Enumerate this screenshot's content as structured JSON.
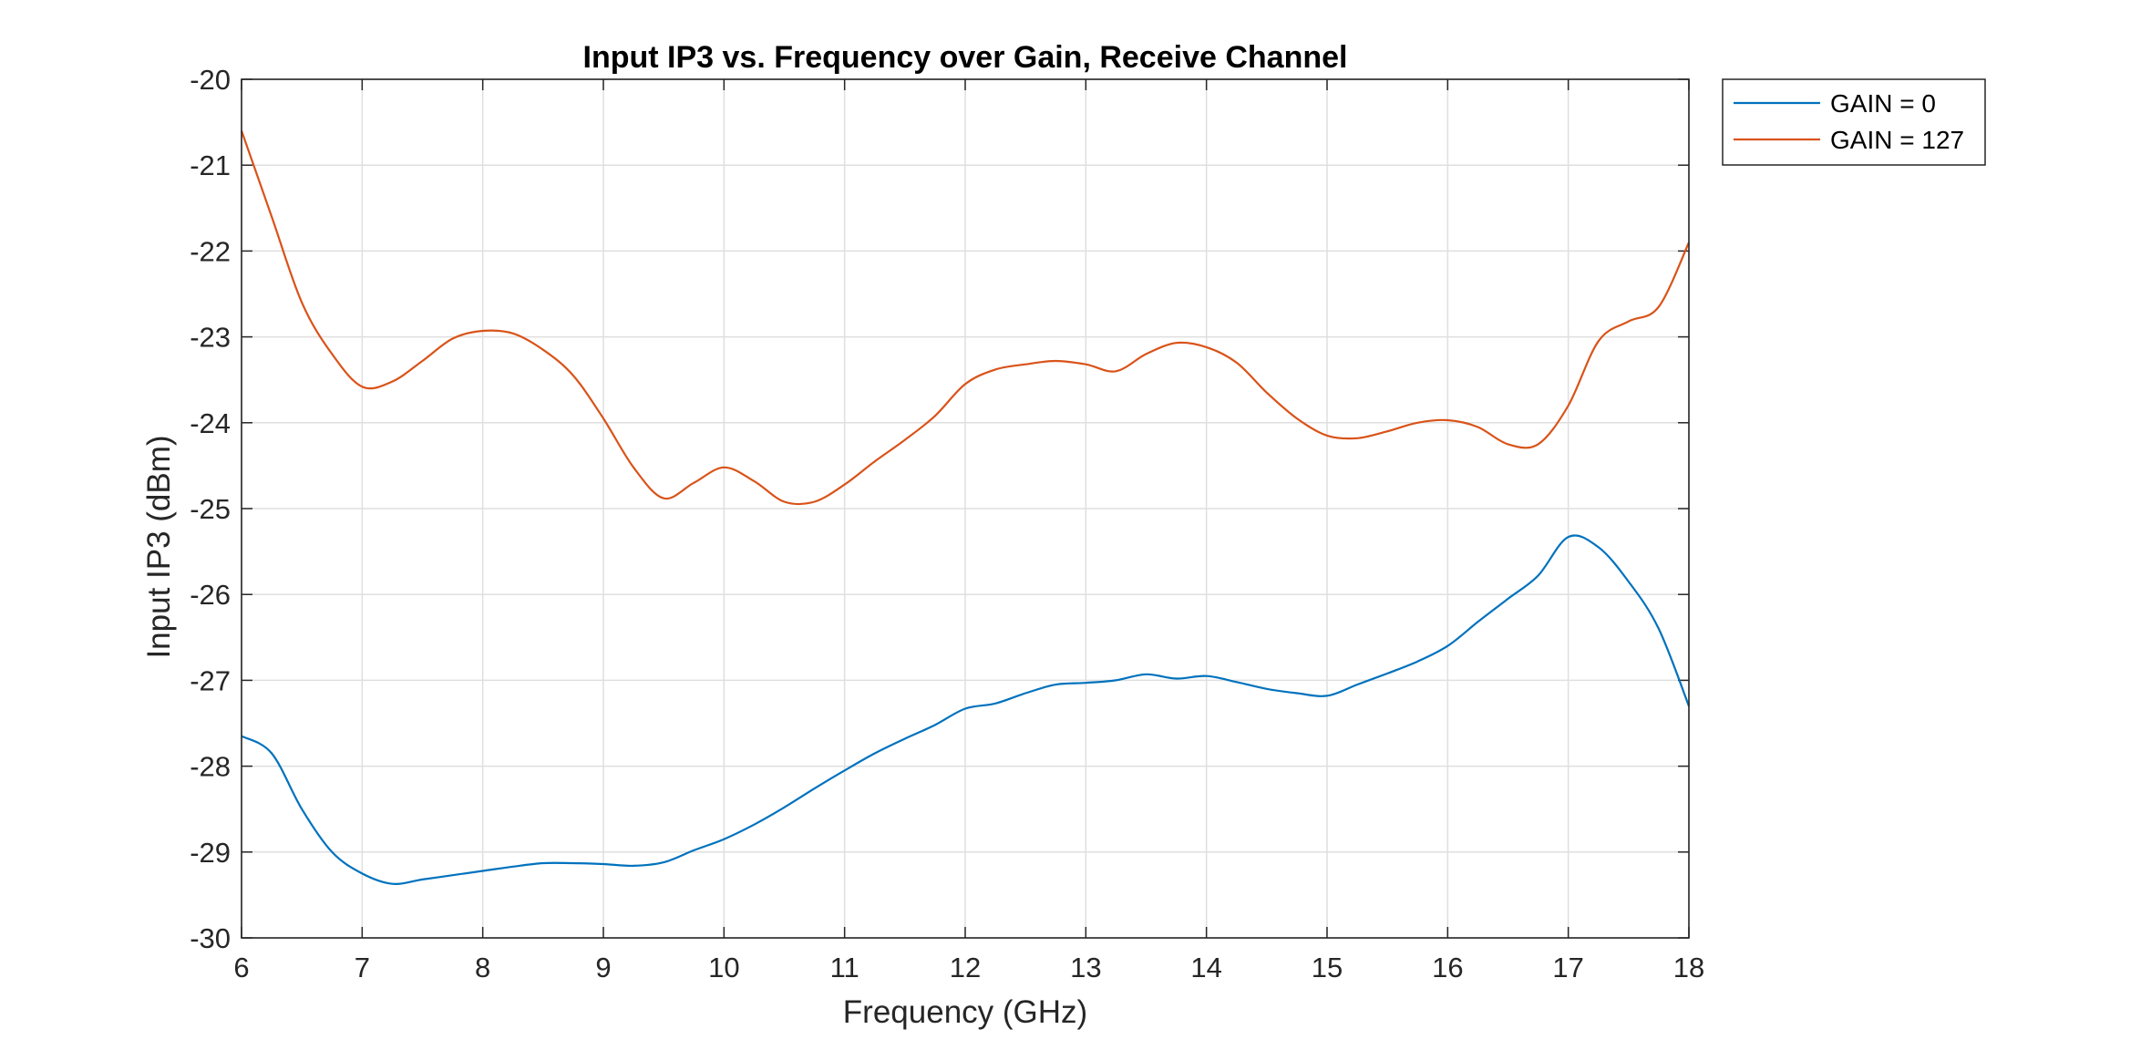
{
  "chart_data": {
    "type": "line",
    "title": "Input IP3 vs. Frequency over Gain, Receive Channel",
    "xlabel": "Frequency (GHz)",
    "ylabel": "Input IP3 (dBm)",
    "xlim": [
      6,
      18
    ],
    "ylim": [
      -30,
      -20
    ],
    "xticks": [
      "6",
      "7",
      "8",
      "9",
      "10",
      "11",
      "12",
      "13",
      "14",
      "15",
      "16",
      "17",
      "18"
    ],
    "yticks": [
      "-20",
      "-21",
      "-22",
      "-23",
      "-24",
      "-25",
      "-26",
      "-27",
      "-28",
      "-29",
      "-30"
    ],
    "grid": true,
    "legend_position": "outside-top-right",
    "x": [
      6.0,
      6.25,
      6.5,
      6.75,
      7.0,
      7.25,
      7.5,
      7.75,
      8.0,
      8.25,
      8.5,
      8.75,
      9.0,
      9.25,
      9.5,
      9.75,
      10.0,
      10.25,
      10.5,
      10.75,
      11.0,
      11.25,
      11.5,
      11.75,
      12.0,
      12.25,
      12.5,
      12.75,
      13.0,
      13.25,
      13.5,
      13.75,
      14.0,
      14.25,
      14.5,
      14.75,
      15.0,
      15.25,
      15.5,
      15.75,
      16.0,
      16.25,
      16.5,
      16.75,
      17.0,
      17.25,
      17.5,
      17.75,
      18.0
    ],
    "series": [
      {
        "name": "GAIN = 0",
        "color": "#0072BD",
        "values": [
          -27.65,
          -27.85,
          -28.5,
          -29.0,
          -29.25,
          -29.37,
          -29.32,
          -29.27,
          -29.22,
          -29.17,
          -29.13,
          -29.13,
          -29.14,
          -29.16,
          -29.12,
          -28.98,
          -28.85,
          -28.68,
          -28.48,
          -28.26,
          -28.05,
          -27.85,
          -27.68,
          -27.52,
          -27.33,
          -27.27,
          -27.15,
          -27.05,
          -27.03,
          -27.0,
          -26.93,
          -26.98,
          -26.95,
          -27.02,
          -27.1,
          -27.15,
          -27.18,
          -27.05,
          -26.92,
          -26.78,
          -26.6,
          -26.32,
          -26.05,
          -25.78,
          -25.33,
          -25.45,
          -25.85,
          -26.4,
          -27.3
        ]
      },
      {
        "name": "GAIN = 127",
        "color": "#D95319",
        "values": [
          -20.6,
          -21.6,
          -22.6,
          -23.2,
          -23.58,
          -23.52,
          -23.28,
          -23.02,
          -22.93,
          -22.96,
          -23.15,
          -23.45,
          -23.95,
          -24.52,
          -24.88,
          -24.7,
          -24.52,
          -24.68,
          -24.92,
          -24.92,
          -24.72,
          -24.45,
          -24.2,
          -23.92,
          -23.55,
          -23.38,
          -23.32,
          -23.28,
          -23.32,
          -23.4,
          -23.2,
          -23.07,
          -23.12,
          -23.3,
          -23.65,
          -23.95,
          -24.15,
          -24.18,
          -24.1,
          -24.0,
          -23.97,
          -24.05,
          -24.25,
          -24.25,
          -23.8,
          -23.05,
          -22.82,
          -22.65,
          -21.9
        ]
      }
    ]
  }
}
